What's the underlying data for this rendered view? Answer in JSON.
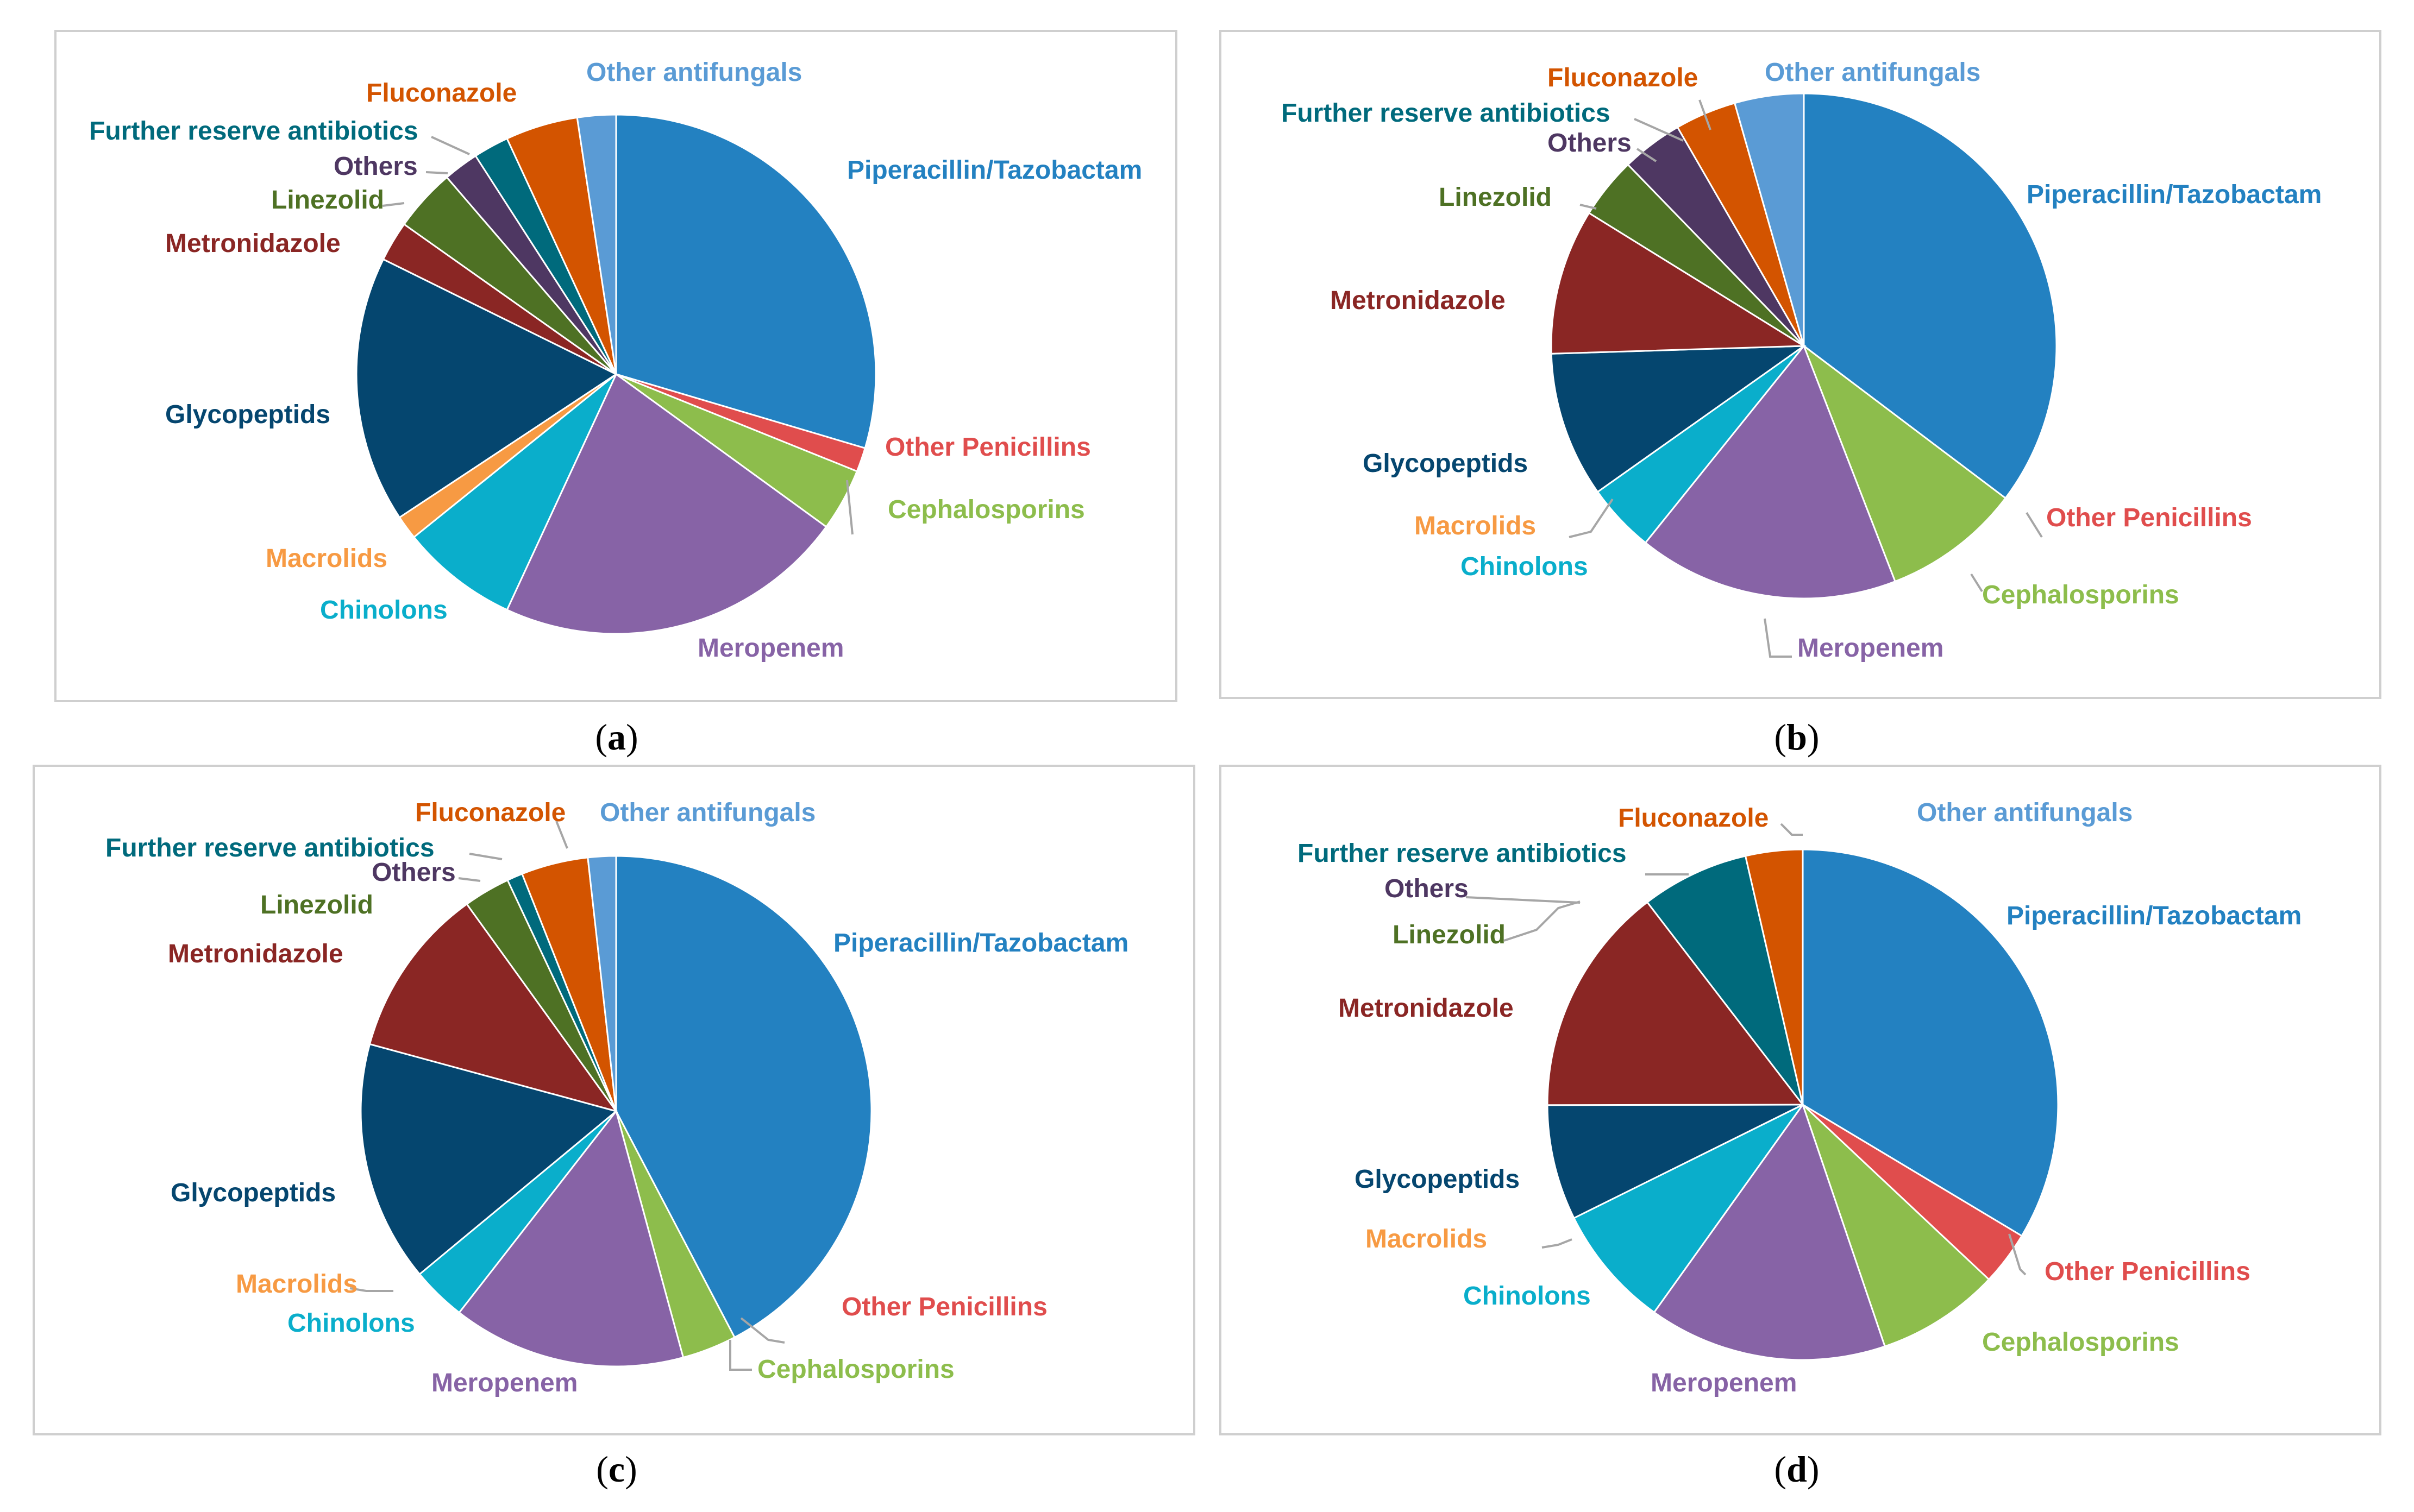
{
  "colors": {
    "Piperacillin/Tazobactam": "#2381c1",
    "Other Penicillins": "#e04d4d",
    "Cephalosporins": "#8dbd4c",
    "Meropenem": "#8763a6",
    "Chinolons": "#0aaecb",
    "Macrolids": "#f79a43",
    "Glycopeptids": "#05466f",
    "Metronidazole": "#8a2624",
    "Linezolid": "#4e7124",
    "Others": "#4e3762",
    "Further reserve antibiotics": "#006a7c",
    "Fluconazole": "#d35400",
    "Other antifungals": "#5a9bd5"
  },
  "chart_data": [
    {
      "type": "pie",
      "panel": "a",
      "caption": "a",
      "categories": [
        "Piperacillin/Tazobactam",
        "Other Penicillins",
        "Cephalosporins",
        "Meropenem",
        "Chinolons",
        "Macrolids",
        "Glycopeptids",
        "Metronidazole",
        "Linezolid",
        "Others",
        "Further reserve antibiotics",
        "Fluconazole",
        "Other antifungals"
      ],
      "values": [
        29.6,
        1.5,
        3.9,
        21.9,
        7.3,
        1.5,
        16.6,
        2.5,
        3.9,
        2.2,
        2.2,
        4.5,
        2.4
      ]
    },
    {
      "type": "pie",
      "panel": "b",
      "caption": "b",
      "categories": [
        "Piperacillin/Tazobactam",
        "Other Penicillins",
        "Cephalosporins",
        "Meropenem",
        "Chinolons",
        "Macrolids",
        "Glycopeptids",
        "Metronidazole",
        "Linezolid",
        "Others",
        "Further reserve antibiotics",
        "Fluconazole",
        "Other antifungals"
      ],
      "values": [
        36.0,
        0.0,
        9.0,
        17.0,
        4.5,
        0.0,
        9.5,
        9.5,
        4.0,
        4.0,
        0.0,
        4.0,
        4.5
      ]
    },
    {
      "type": "pie",
      "panel": "c",
      "caption": "c",
      "categories": [
        "Piperacillin/Tazobactam",
        "Other Penicillins",
        "Cephalosporins",
        "Meropenem",
        "Chinolons",
        "Macrolids",
        "Glycopeptids",
        "Metronidazole",
        "Linezolid",
        "Others",
        "Further reserve antibiotics",
        "Fluconazole",
        "Other antifungals"
      ],
      "values": [
        43.0,
        0.0,
        3.5,
        15.0,
        3.5,
        0.0,
        15.5,
        11.0,
        3.0,
        0.0,
        1.0,
        4.3,
        1.8
      ]
    },
    {
      "type": "pie",
      "panel": "d",
      "caption": "d",
      "categories": [
        "Piperacillin/Tazobactam",
        "Other Penicillins",
        "Cephalosporins",
        "Meropenem",
        "Chinolons",
        "Macrolids",
        "Glycopeptids",
        "Metronidazole",
        "Linezolid",
        "Others",
        "Further reserve antibiotics",
        "Fluconazole",
        "Other antifungals"
      ],
      "values": [
        34.5,
        3.5,
        8.0,
        15.5,
        8.0,
        0.0,
        7.5,
        15.0,
        0.0,
        0.0,
        7.0,
        3.7,
        0.0
      ]
    }
  ]
}
